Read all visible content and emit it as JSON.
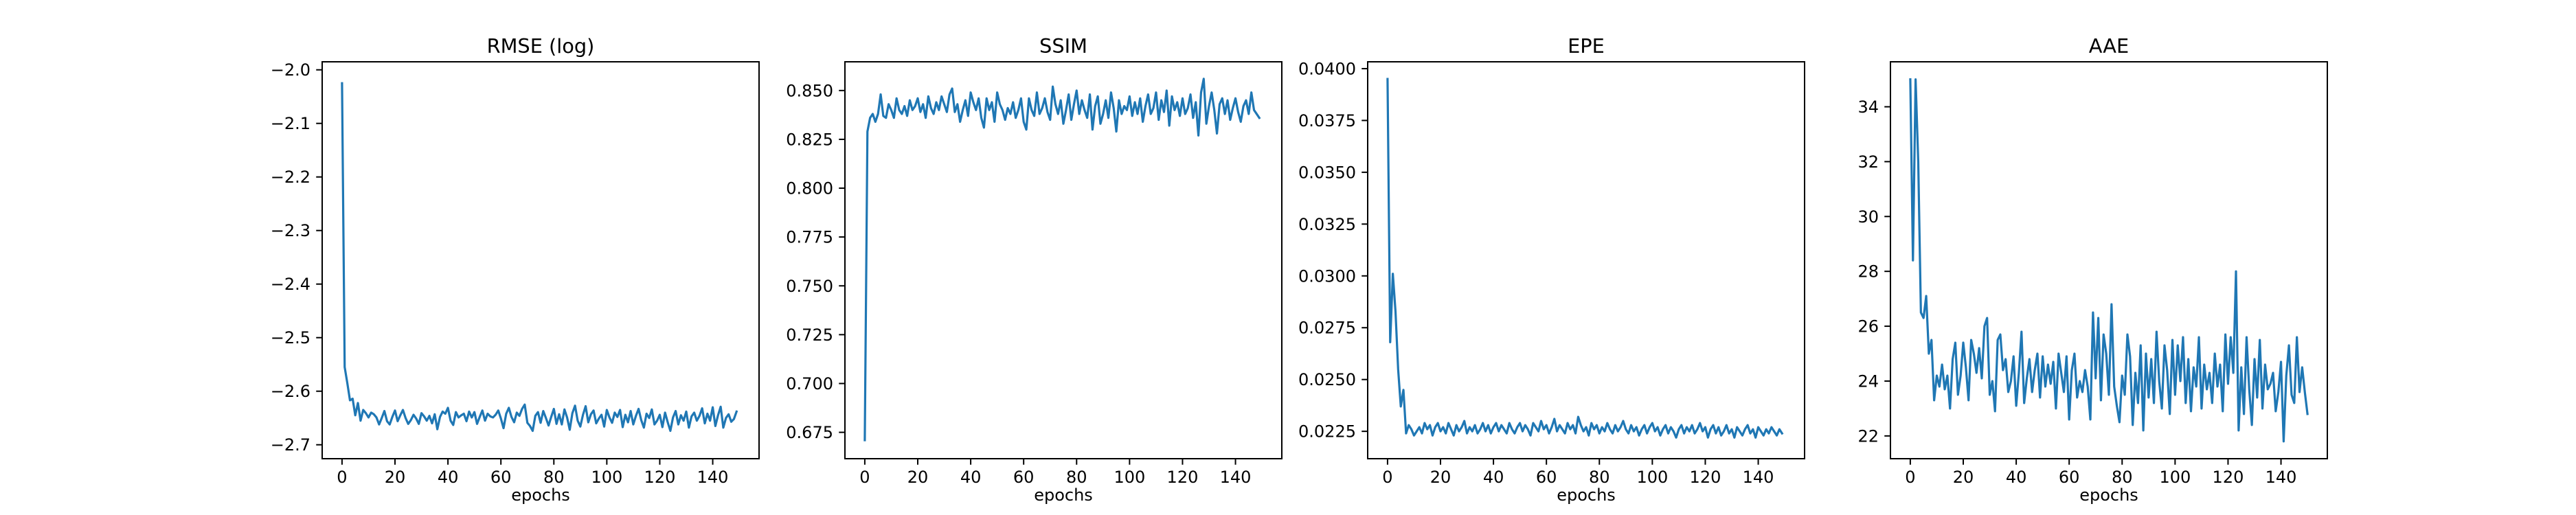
{
  "chart_data": [
    {
      "type": "line",
      "title": "RMSE (log)",
      "xlabel": "epochs",
      "ylabel": "",
      "xlim": [
        -7.5,
        157.5
      ],
      "ylim": [
        -2.726,
        -1.985
      ],
      "xticks": [
        0,
        20,
        40,
        60,
        80,
        100,
        120,
        140
      ],
      "xtick_labels": [
        "0",
        "20",
        "40",
        "60",
        "80",
        "100",
        "120",
        "140"
      ],
      "yticks": [
        -2.0,
        -2.1,
        -2.2,
        -2.3,
        -2.4,
        -2.5,
        -2.6,
        -2.7
      ],
      "ytick_labels": [
        "−2.0",
        "−2.1",
        "−2.2",
        "−2.3",
        "−2.4",
        "−2.5",
        "−2.6",
        "−2.7"
      ],
      "grid": false,
      "series": [
        {
          "color": "#1f77b4",
          "x_start": 0,
          "x_step": 1,
          "values": [
            -2.025,
            -2.555,
            -2.585,
            -2.617,
            -2.614,
            -2.645,
            -2.622,
            -2.655,
            -2.635,
            -2.641,
            -2.649,
            -2.64,
            -2.643,
            -2.649,
            -2.662,
            -2.65,
            -2.637,
            -2.656,
            -2.662,
            -2.648,
            -2.636,
            -2.656,
            -2.645,
            -2.635,
            -2.65,
            -2.661,
            -2.654,
            -2.644,
            -2.651,
            -2.661,
            -2.641,
            -2.647,
            -2.655,
            -2.646,
            -2.66,
            -2.643,
            -2.671,
            -2.648,
            -2.638,
            -2.642,
            -2.631,
            -2.655,
            -2.663,
            -2.639,
            -2.649,
            -2.645,
            -2.642,
            -2.656,
            -2.638,
            -2.649,
            -2.639,
            -2.661,
            -2.648,
            -2.636,
            -2.655,
            -2.642,
            -2.647,
            -2.649,
            -2.644,
            -2.636,
            -2.651,
            -2.669,
            -2.642,
            -2.631,
            -2.648,
            -2.658,
            -2.64,
            -2.646,
            -2.633,
            -2.625,
            -2.659,
            -2.665,
            -2.674,
            -2.646,
            -2.639,
            -2.659,
            -2.637,
            -2.65,
            -2.664,
            -2.648,
            -2.633,
            -2.661,
            -2.643,
            -2.662,
            -2.634,
            -2.649,
            -2.672,
            -2.641,
            -2.627,
            -2.655,
            -2.666,
            -2.644,
            -2.628,
            -2.658,
            -2.643,
            -2.636,
            -2.66,
            -2.651,
            -2.644,
            -2.666,
            -2.635,
            -2.649,
            -2.659,
            -2.64,
            -2.648,
            -2.635,
            -2.667,
            -2.644,
            -2.658,
            -2.637,
            -2.662,
            -2.646,
            -2.633,
            -2.654,
            -2.668,
            -2.642,
            -2.65,
            -2.634,
            -2.662,
            -2.655,
            -2.644,
            -2.667,
            -2.64,
            -2.658,
            -2.674,
            -2.649,
            -2.637,
            -2.662,
            -2.645,
            -2.655,
            -2.638,
            -2.668,
            -2.647,
            -2.64,
            -2.655,
            -2.646,
            -2.632,
            -2.66,
            -2.642,
            -2.655,
            -2.63,
            -2.665,
            -2.645,
            -2.629,
            -2.668,
            -2.65,
            -2.643,
            -2.657,
            -2.652,
            -2.638
          ]
        }
      ]
    },
    {
      "type": "line",
      "title": "SSIM",
      "xlabel": "epochs",
      "ylabel": "",
      "xlim": [
        -7.5,
        157.5
      ],
      "ylim": [
        0.6615,
        0.8647
      ],
      "xticks": [
        0,
        20,
        40,
        60,
        80,
        100,
        120,
        140
      ],
      "xtick_labels": [
        "0",
        "20",
        "40",
        "60",
        "80",
        "100",
        "120",
        "140"
      ],
      "yticks": [
        0.675,
        0.7,
        0.725,
        0.75,
        0.775,
        0.8,
        0.825,
        0.85
      ],
      "ytick_labels": [
        "0.675",
        "0.700",
        "0.725",
        "0.750",
        "0.775",
        "0.800",
        "0.825",
        "0.850"
      ],
      "grid": false,
      "series": [
        {
          "color": "#1f77b4",
          "x_start": 0,
          "x_step": 1,
          "values": [
            0.671,
            0.829,
            0.836,
            0.838,
            0.834,
            0.838,
            0.848,
            0.837,
            0.836,
            0.843,
            0.84,
            0.836,
            0.846,
            0.84,
            0.838,
            0.842,
            0.837,
            0.845,
            0.84,
            0.842,
            0.846,
            0.839,
            0.843,
            0.836,
            0.847,
            0.841,
            0.838,
            0.844,
            0.84,
            0.847,
            0.843,
            0.839,
            0.848,
            0.851,
            0.839,
            0.843,
            0.834,
            0.84,
            0.845,
            0.837,
            0.849,
            0.844,
            0.84,
            0.846,
            0.836,
            0.831,
            0.846,
            0.84,
            0.844,
            0.834,
            0.849,
            0.843,
            0.84,
            0.835,
            0.841,
            0.838,
            0.844,
            0.836,
            0.84,
            0.846,
            0.834,
            0.83,
            0.846,
            0.84,
            0.837,
            0.849,
            0.838,
            0.841,
            0.846,
            0.839,
            0.835,
            0.852,
            0.843,
            0.838,
            0.845,
            0.833,
            0.84,
            0.848,
            0.835,
            0.843,
            0.85,
            0.838,
            0.845,
            0.84,
            0.836,
            0.848,
            0.83,
            0.842,
            0.847,
            0.833,
            0.838,
            0.845,
            0.836,
            0.849,
            0.841,
            0.829,
            0.845,
            0.838,
            0.842,
            0.84,
            0.847,
            0.837,
            0.844,
            0.838,
            0.846,
            0.834,
            0.842,
            0.848,
            0.838,
            0.841,
            0.849,
            0.835,
            0.845,
            0.839,
            0.85,
            0.832,
            0.847,
            0.84,
            0.844,
            0.837,
            0.846,
            0.838,
            0.841,
            0.848,
            0.836,
            0.844,
            0.827,
            0.849,
            0.856,
            0.833,
            0.842,
            0.849,
            0.84,
            0.828,
            0.843,
            0.846,
            0.838,
            0.845,
            0.835,
            0.841,
            0.846,
            0.839,
            0.834,
            0.842,
            0.845,
            0.838,
            0.849,
            0.84,
            0.838,
            0.836
          ]
        }
      ]
    },
    {
      "type": "line",
      "title": "EPE",
      "xlabel": "epochs",
      "ylabel": "",
      "xlim": [
        -7.5,
        157.5
      ],
      "ylim": [
        0.02118,
        0.04033
      ],
      "xticks": [
        0,
        20,
        40,
        60,
        80,
        100,
        120,
        140
      ],
      "xtick_labels": [
        "0",
        "20",
        "40",
        "60",
        "80",
        "100",
        "120",
        "140"
      ],
      "yticks": [
        0.0225,
        0.025,
        0.0275,
        0.03,
        0.0325,
        0.035,
        0.0375,
        0.04
      ],
      "ytick_labels": [
        "0.0225",
        "0.0250",
        "0.0275",
        "0.0300",
        "0.0325",
        "0.0350",
        "0.0375",
        "0.0400"
      ],
      "grid": false,
      "series": [
        {
          "color": "#1f77b4",
          "x_start": 0,
          "x_step": 1,
          "values": [
            0.0395,
            0.0268,
            0.0301,
            0.0283,
            0.0255,
            0.0237,
            0.0245,
            0.0224,
            0.0228,
            0.0226,
            0.0223,
            0.0225,
            0.0227,
            0.0224,
            0.0229,
            0.0226,
            0.0228,
            0.0223,
            0.0227,
            0.0229,
            0.0225,
            0.0227,
            0.0224,
            0.0229,
            0.0226,
            0.0223,
            0.0228,
            0.0225,
            0.0227,
            0.023,
            0.0224,
            0.0227,
            0.0225,
            0.0228,
            0.0224,
            0.0226,
            0.0229,
            0.0225,
            0.0228,
            0.0224,
            0.0227,
            0.0229,
            0.0225,
            0.0228,
            0.0226,
            0.0224,
            0.0229,
            0.0226,
            0.0224,
            0.0227,
            0.0229,
            0.0225,
            0.0228,
            0.0226,
            0.0223,
            0.0229,
            0.0227,
            0.0225,
            0.023,
            0.0226,
            0.0228,
            0.0224,
            0.0227,
            0.0231,
            0.0225,
            0.0228,
            0.0226,
            0.0224,
            0.0229,
            0.0226,
            0.0228,
            0.0224,
            0.0232,
            0.0228,
            0.0225,
            0.0227,
            0.0223,
            0.0229,
            0.0226,
            0.0228,
            0.0224,
            0.0227,
            0.0225,
            0.0229,
            0.0226,
            0.0224,
            0.0228,
            0.0225,
            0.0227,
            0.023,
            0.0226,
            0.0224,
            0.0228,
            0.0225,
            0.0227,
            0.0223,
            0.0226,
            0.0228,
            0.0224,
            0.0227,
            0.0229,
            0.0225,
            0.0227,
            0.0223,
            0.0226,
            0.0228,
            0.0224,
            0.0227,
            0.0225,
            0.0222,
            0.0226,
            0.0228,
            0.0224,
            0.0227,
            0.0225,
            0.0228,
            0.0224,
            0.0226,
            0.0229,
            0.0225,
            0.0227,
            0.0222,
            0.0226,
            0.0228,
            0.0224,
            0.0227,
            0.0223,
            0.0225,
            0.0228,
            0.0224,
            0.0226,
            0.0222,
            0.0227,
            0.0225,
            0.0223,
            0.0226,
            0.0228,
            0.0224,
            0.0226,
            0.0222,
            0.0227,
            0.0225,
            0.0223,
            0.0226,
            0.0224,
            0.0227,
            0.0225,
            0.0223,
            0.0226,
            0.0224
          ]
        }
      ]
    },
    {
      "type": "line",
      "title": "AAE",
      "xlabel": "epochs",
      "ylabel": "",
      "xlim": [
        -7.5,
        157.5
      ],
      "ylim": [
        21.17,
        35.64
      ],
      "xticks": [
        0,
        20,
        40,
        60,
        80,
        100,
        120,
        140
      ],
      "xtick_labels": [
        "0",
        "20",
        "40",
        "60",
        "80",
        "100",
        "120",
        "140"
      ],
      "yticks": [
        22,
        24,
        26,
        28,
        30,
        32,
        34
      ],
      "ytick_labels": [
        "22",
        "24",
        "26",
        "28",
        "30",
        "32",
        "34"
      ],
      "grid": false,
      "series": [
        {
          "color": "#1f77b4",
          "x_start": 0,
          "x_step": 1,
          "values": [
            35.0,
            28.4,
            35.0,
            32.0,
            26.5,
            26.3,
            27.1,
            25.0,
            25.5,
            23.3,
            24.2,
            23.8,
            24.6,
            23.7,
            24.2,
            23.0,
            24.8,
            25.4,
            23.5,
            24.2,
            25.4,
            24.5,
            23.3,
            25.5,
            25.0,
            24.3,
            25.2,
            24.1,
            26.0,
            26.3,
            23.5,
            24.0,
            22.9,
            25.5,
            25.7,
            24.4,
            24.8,
            23.6,
            24.0,
            24.9,
            23.1,
            24.3,
            25.8,
            23.2,
            24.1,
            24.8,
            23.6,
            24.4,
            25.0,
            23.4,
            24.9,
            23.8,
            24.6,
            23.9,
            24.7,
            23.0,
            25.0,
            24.3,
            23.6,
            24.9,
            22.6,
            24.4,
            25.0,
            23.4,
            24.0,
            23.6,
            24.4,
            23.8,
            22.6,
            26.5,
            24.1,
            26.3,
            23.3,
            25.7,
            25.0,
            23.5,
            26.8,
            23.8,
            23.1,
            22.5,
            24.2,
            23.5,
            25.7,
            24.9,
            22.4,
            24.3,
            23.2,
            25.3,
            22.2,
            25.0,
            23.4,
            24.8,
            23.2,
            25.8,
            24.0,
            23.0,
            25.3,
            24.4,
            22.8,
            25.5,
            23.5,
            25.3,
            24.0,
            25.6,
            23.2,
            24.8,
            22.9,
            24.5,
            23.8,
            25.6,
            23.0,
            24.6,
            23.7,
            24.3,
            23.2,
            25.0,
            23.8,
            24.6,
            22.9,
            25.7,
            23.9,
            25.6,
            24.3,
            28.0,
            22.2,
            24.5,
            22.8,
            25.6,
            23.7,
            22.4,
            24.8,
            23.4,
            25.5,
            23.0,
            24.6,
            23.7,
            23.9,
            24.3,
            22.9,
            23.6,
            24.7,
            21.8,
            24.2,
            25.3,
            23.5,
            23.2,
            25.6,
            23.6,
            24.5,
            23.6,
            22.8
          ]
        }
      ]
    }
  ]
}
